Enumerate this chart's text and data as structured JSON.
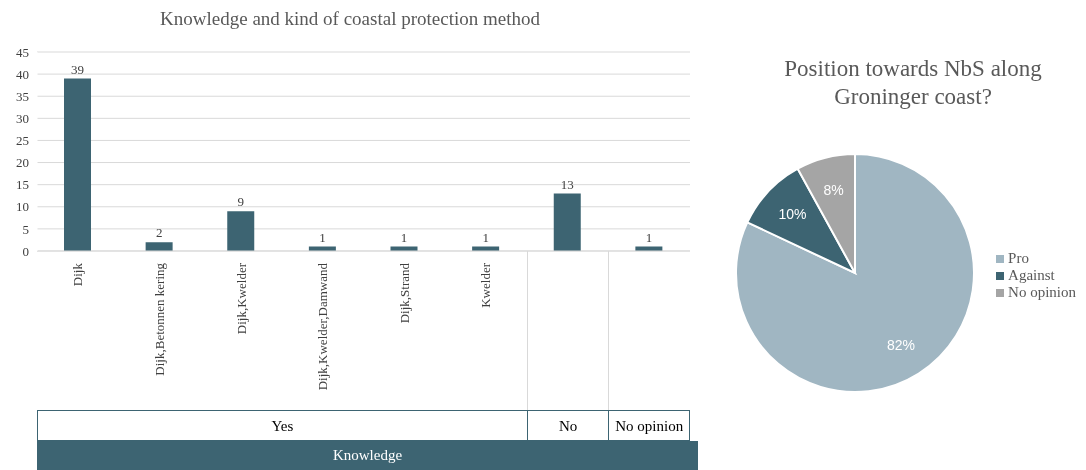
{
  "chart_data": [
    {
      "type": "bar",
      "title": "Knowledge and kind of coastal protection method",
      "xlabel": "Knowledge",
      "annotations": [
        "Yes",
        "No",
        "No opinion"
      ],
      "categories": [
        "Dijk",
        "Dijk,Betonnen kering",
        "Dijk,Kwelder",
        "Dijk,Kwelder,Damwand",
        "Dijk,Strand",
        "Kwelder",
        null,
        null
      ],
      "values": [
        39,
        2,
        9,
        1,
        1,
        1,
        13,
        1
      ],
      "color": "#3d6472",
      "ylim": [
        0,
        45
      ],
      "yticks": [
        0,
        5,
        10,
        15,
        20,
        25,
        30,
        35,
        40,
        45
      ],
      "grid": "y",
      "data_labels": true
    },
    {
      "type": "pie",
      "title": "Position towards NbS along Groninger coast?",
      "categories": [
        "Pro",
        "Against",
        "No opinion"
      ],
      "values": [
        82,
        10,
        8
      ],
      "colors": [
        "#a0b6c2",
        "#3d6472",
        "#a5a5a5"
      ],
      "value_labels": [
        "82%",
        "10%",
        "8%"
      ],
      "legend": "right"
    }
  ]
}
